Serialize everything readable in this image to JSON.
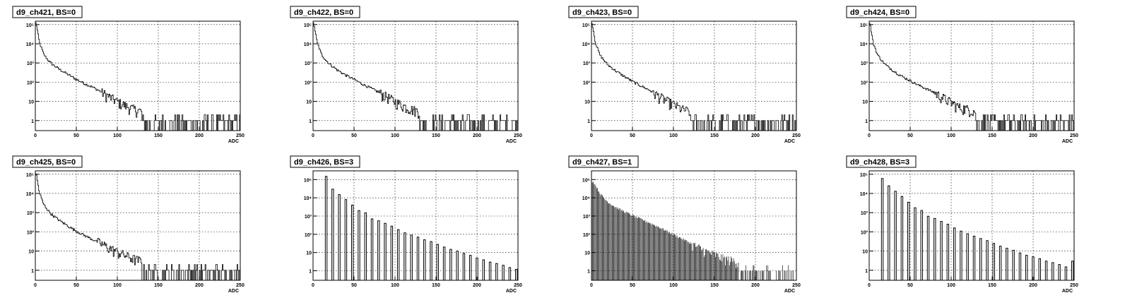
{
  "chart_data": [
    {
      "type": "bar",
      "title": "d9_ch421, BS=0",
      "xlabel": "ADC",
      "ylabel": "",
      "xlim": [
        0,
        250
      ],
      "ylim": [
        0.3,
        150000
      ],
      "y_log": true,
      "grid": true,
      "style": "line",
      "x_ticks": [
        0,
        50,
        100,
        150,
        200,
        250
      ],
      "y_ticks": [
        {
          "v": 1,
          "t": "1"
        },
        {
          "v": 10,
          "t": "10"
        },
        {
          "v": 100,
          "t": "10²"
        },
        {
          "v": 1000,
          "t": "10³"
        },
        {
          "v": 10000,
          "t": "10⁴"
        },
        {
          "v": 100000,
          "t": "10⁵"
        }
      ],
      "x": [
        1,
        5,
        10,
        15,
        20,
        30,
        40,
        50,
        60,
        70,
        80,
        90,
        100,
        110,
        120,
        130,
        140,
        150,
        160,
        170,
        180,
        190,
        200,
        210,
        220,
        230,
        240,
        250
      ],
      "values": [
        120000,
        12000,
        3000,
        1500,
        900,
        450,
        250,
        140,
        85,
        55,
        32,
        18,
        10,
        6,
        4,
        3,
        2,
        2,
        2,
        1.5,
        1.5,
        1.2,
        1.2,
        1,
        1,
        1,
        1,
        1
      ]
    },
    {
      "type": "bar",
      "title": "d9_ch422, BS=0",
      "xlabel": "ADC",
      "ylabel": "",
      "xlim": [
        0,
        250
      ],
      "ylim": [
        0.3,
        150000
      ],
      "y_log": true,
      "grid": true,
      "style": "line",
      "x_ticks": [
        0,
        50,
        100,
        150,
        200,
        250
      ],
      "y_ticks": [
        {
          "v": 1,
          "t": "1"
        },
        {
          "v": 10,
          "t": "10"
        },
        {
          "v": 100,
          "t": "10²"
        },
        {
          "v": 1000,
          "t": "10³"
        },
        {
          "v": 10000,
          "t": "10⁴"
        },
        {
          "v": 100000,
          "t": "10⁵"
        }
      ],
      "x": [
        1,
        5,
        10,
        15,
        20,
        30,
        40,
        50,
        60,
        70,
        80,
        90,
        100,
        110,
        120,
        130,
        140,
        150,
        160,
        170,
        180,
        190,
        200,
        210,
        220,
        230,
        240
      ],
      "values": [
        110000,
        12000,
        3000,
        1500,
        900,
        420,
        230,
        140,
        80,
        50,
        30,
        18,
        10,
        6,
        4,
        3,
        2,
        2,
        1.5,
        1.5,
        1.2,
        1.2,
        1,
        1,
        1,
        1,
        1
      ]
    },
    {
      "type": "bar",
      "title": "d9_ch423, BS=0",
      "xlabel": "ADC",
      "ylabel": "",
      "xlim": [
        0,
        250
      ],
      "ylim": [
        0.3,
        150000
      ],
      "y_log": true,
      "grid": true,
      "style": "line",
      "x_ticks": [
        0,
        50,
        100,
        150,
        200,
        250
      ],
      "y_ticks": [
        {
          "v": 1,
          "t": "1"
        },
        {
          "v": 10,
          "t": "10"
        },
        {
          "v": 100,
          "t": "10²"
        },
        {
          "v": 1000,
          "t": "10³"
        },
        {
          "v": 10000,
          "t": "10⁴"
        },
        {
          "v": 100000,
          "t": "10⁵"
        }
      ],
      "x": [
        1,
        5,
        10,
        15,
        20,
        30,
        40,
        50,
        60,
        70,
        80,
        90,
        100,
        110,
        120,
        130,
        140,
        150,
        160,
        170,
        180,
        190,
        200,
        210,
        220
      ],
      "values": [
        110000,
        11000,
        2800,
        1400,
        800,
        380,
        200,
        110,
        65,
        40,
        22,
        12,
        7,
        4,
        3,
        2,
        2,
        1.5,
        1.5,
        1.2,
        1,
        1,
        1,
        1,
        1
      ]
    },
    {
      "type": "bar",
      "title": "d9_ch424, BS=0",
      "xlabel": "ADC",
      "ylabel": "",
      "xlim": [
        0,
        250
      ],
      "ylim": [
        0.3,
        150000
      ],
      "y_log": true,
      "grid": true,
      "style": "line",
      "x_ticks": [
        0,
        50,
        100,
        150,
        200,
        250
      ],
      "y_ticks": [
        {
          "v": 1,
          "t": "1"
        },
        {
          "v": 10,
          "t": "10"
        },
        {
          "v": 100,
          "t": "10²"
        },
        {
          "v": 1000,
          "t": "10³"
        },
        {
          "v": 10000,
          "t": "10⁴"
        },
        {
          "v": 100000,
          "t": "10⁵"
        }
      ],
      "x": [
        1,
        5,
        10,
        15,
        20,
        30,
        40,
        50,
        60,
        70,
        80,
        90,
        100,
        110,
        120,
        130,
        140,
        150,
        160,
        170,
        180,
        190,
        200,
        210,
        220,
        230,
        240,
        250
      ],
      "values": [
        110000,
        11000,
        2800,
        1400,
        800,
        380,
        200,
        120,
        70,
        45,
        28,
        16,
        9,
        5,
        4,
        3,
        2,
        2,
        1.5,
        1.5,
        1.2,
        1.2,
        1,
        1,
        1,
        1,
        1,
        1
      ]
    },
    {
      "type": "bar",
      "title": "d9_ch425, BS=0",
      "xlabel": "ADC",
      "ylabel": "",
      "xlim": [
        0,
        250
      ],
      "ylim": [
        0.3,
        150000
      ],
      "y_log": true,
      "grid": true,
      "style": "line",
      "x_ticks": [
        0,
        50,
        100,
        150,
        200,
        250
      ],
      "y_ticks": [
        {
          "v": 1,
          "t": "1"
        },
        {
          "v": 10,
          "t": "10"
        },
        {
          "v": 100,
          "t": "10²"
        },
        {
          "v": 1000,
          "t": "10³"
        },
        {
          "v": 10000,
          "t": "10⁴"
        },
        {
          "v": 100000,
          "t": "10⁵"
        }
      ],
      "x": [
        1,
        5,
        10,
        15,
        20,
        30,
        40,
        50,
        60,
        70,
        80,
        90,
        100,
        110,
        120,
        130,
        140,
        150,
        160,
        170,
        180,
        190,
        200,
        210,
        220,
        230,
        240,
        250
      ],
      "values": [
        110000,
        11000,
        2800,
        1400,
        800,
        380,
        200,
        110,
        65,
        40,
        25,
        15,
        9,
        6,
        4,
        3,
        2,
        2,
        1.5,
        1.5,
        1.2,
        1.2,
        1,
        1,
        1,
        1,
        1,
        1
      ]
    },
    {
      "type": "bar",
      "title": "d9_ch426, BS=3",
      "xlabel": "ADC",
      "ylabel": "",
      "xlim": [
        0,
        250
      ],
      "ylim": [
        0.3,
        300000
      ],
      "y_log": true,
      "grid": true,
      "style": "bars",
      "x_ticks": [
        0,
        50,
        100,
        150,
        200,
        250
      ],
      "y_ticks": [
        {
          "v": 1,
          "t": "1"
        },
        {
          "v": 10,
          "t": "10"
        },
        {
          "v": 100,
          "t": "10²"
        },
        {
          "v": 1000,
          "t": "10³"
        },
        {
          "v": 10000,
          "t": "10⁴"
        },
        {
          "v": 100000,
          "t": "10⁵"
        }
      ],
      "x": [
        16,
        24,
        32,
        40,
        48,
        56,
        64,
        72,
        80,
        88,
        96,
        104,
        112,
        120,
        128,
        136,
        144,
        152,
        160,
        168,
        176,
        184,
        192,
        200,
        208,
        216,
        224,
        232,
        240,
        248
      ],
      "values": [
        150000,
        30000,
        15000,
        8000,
        4000,
        2000,
        1500,
        700,
        550,
        400,
        280,
        180,
        120,
        90,
        70,
        50,
        40,
        28,
        20,
        15,
        12,
        9,
        7,
        5,
        4,
        3,
        2.5,
        2,
        1.5,
        1.2
      ]
    },
    {
      "type": "bar",
      "title": "d9_ch427, BS=1",
      "xlabel": "ADC",
      "ylabel": "",
      "xlim": [
        0,
        250
      ],
      "ylim": [
        0.3,
        300000
      ],
      "y_log": true,
      "grid": true,
      "style": "dense",
      "x_ticks": [
        0,
        50,
        100,
        150,
        200,
        250
      ],
      "y_ticks": [
        {
          "v": 1,
          "t": "1"
        },
        {
          "v": 10,
          "t": "10"
        },
        {
          "v": 100,
          "t": "10²"
        },
        {
          "v": 1000,
          "t": "10³"
        },
        {
          "v": 10000,
          "t": "10⁴"
        },
        {
          "v": 100000,
          "t": "10⁵"
        }
      ],
      "x": [
        2,
        5,
        10,
        15,
        20,
        30,
        40,
        50,
        60,
        70,
        80,
        90,
        100,
        110,
        120,
        130,
        140,
        150,
        160,
        170,
        180,
        190,
        200,
        210,
        220,
        230,
        240,
        250
      ],
      "values": [
        80000,
        50000,
        20000,
        10000,
        6000,
        3000,
        1800,
        1100,
        700,
        450,
        280,
        170,
        100,
        60,
        35,
        20,
        12,
        8,
        5,
        4,
        3,
        2,
        2,
        1.5,
        1.5,
        1.2,
        1,
        1
      ]
    },
    {
      "type": "bar",
      "title": "d9_ch428, BS=3",
      "xlabel": "ADC",
      "ylabel": "",
      "xlim": [
        0,
        250
      ],
      "ylim": [
        0.3,
        150000
      ],
      "y_log": true,
      "grid": true,
      "style": "bars",
      "x_ticks": [
        0,
        50,
        100,
        150,
        200,
        250
      ],
      "y_ticks": [
        {
          "v": 1,
          "t": "1"
        },
        {
          "v": 10,
          "t": "10"
        },
        {
          "v": 100,
          "t": "10²"
        },
        {
          "v": 1000,
          "t": "10³"
        },
        {
          "v": 10000,
          "t": "10⁴"
        },
        {
          "v": 100000,
          "t": "10⁵"
        }
      ],
      "x": [
        16,
        24,
        32,
        40,
        48,
        56,
        64,
        72,
        80,
        88,
        96,
        104,
        112,
        120,
        128,
        136,
        144,
        152,
        160,
        168,
        176,
        184,
        192,
        200,
        208,
        216,
        224,
        232,
        240,
        248
      ],
      "values": [
        60000,
        25000,
        13000,
        7000,
        3500,
        1800,
        1300,
        650,
        500,
        350,
        250,
        160,
        110,
        80,
        60,
        45,
        35,
        25,
        18,
        14,
        11,
        8,
        6,
        5,
        4,
        3,
        2.5,
        2,
        1.5,
        3
      ]
    }
  ]
}
